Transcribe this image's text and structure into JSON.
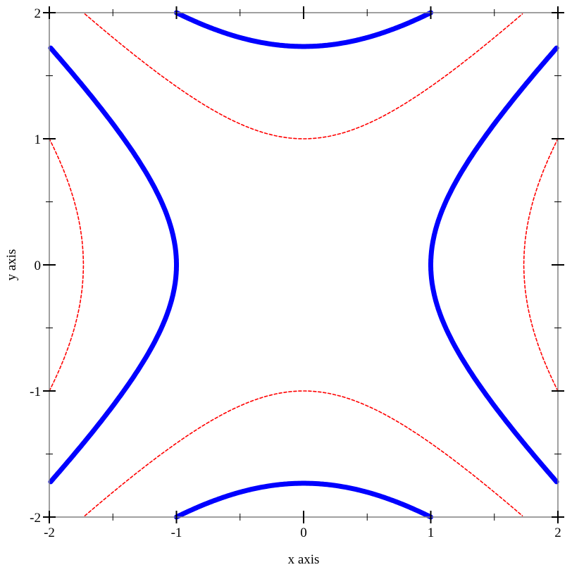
{
  "chart_data": {
    "type": "contour",
    "xlabel": "x axis",
    "ylabel": "y axis",
    "xlim": [
      -2,
      2
    ],
    "ylim": [
      -2,
      2
    ],
    "xticks": [
      -2,
      -1,
      0,
      1,
      2
    ],
    "yticks": [
      -2,
      -1,
      0,
      1,
      2
    ],
    "grid": false,
    "curves": [
      {
        "equation": "x^2 - y^2 = 1",
        "color": "#0000ff",
        "style": "solid-thick"
      },
      {
        "equation": "y^2 - x^2 = 3",
        "color": "#0000ff",
        "style": "solid-thick"
      },
      {
        "equation": "y^2 - x^2 = 1",
        "color": "#ff0000",
        "style": "dashed"
      },
      {
        "equation": "x^2 - y^2 = 3",
        "color": "#ff0000",
        "style": "dashed"
      }
    ],
    "curve_params": [
      {
        "orientation": "horizontal",
        "k": 1
      },
      {
        "orientation": "vertical",
        "k": 3
      },
      {
        "orientation": "vertical",
        "k": 1
      },
      {
        "orientation": "horizontal",
        "k": 3
      }
    ]
  }
}
